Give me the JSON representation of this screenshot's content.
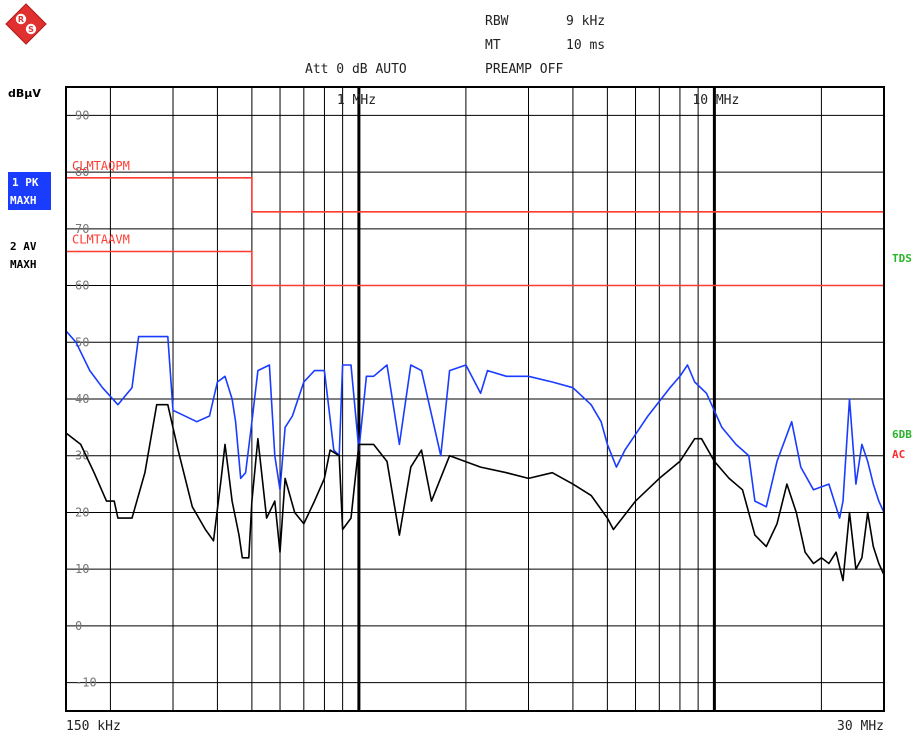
{
  "header": {
    "rbw_label": "RBW",
    "rbw_value": "9 kHz",
    "mt_label": "MT",
    "mt_value": "10 ms",
    "att_text": "Att 0 dB AUTO",
    "preamp_text": "PREAMP OFF"
  },
  "side_panel": {
    "unit_label": "dBµV",
    "trace1_line1": "1 PK",
    "trace1_line2": "MAXH",
    "trace2_line1": "2 AV",
    "trace2_line2": "MAXH",
    "tds_label": "TDS",
    "sixdb_label": "6DB",
    "ac_label": "AC"
  },
  "colors": {
    "background": "#ffffff",
    "grid": "#000000",
    "limit_lines": "#ff3b30",
    "peak_trace": "#1a3cff",
    "average_trace": "#000000",
    "trace1_badge": "#1a3cff",
    "status_green": "#2bb52b",
    "status_red": "#ff2a2a"
  },
  "logo_icon": "rohde-schwarz-diamond-logo",
  "chart_data": {
    "type": "line",
    "x_scale": "log",
    "x_unit": "Hz",
    "xlim": [
      150000,
      30000000
    ],
    "ylim": [
      -15,
      95
    ],
    "y_unit": "dBµV",
    "y_ticks": [
      90,
      80,
      70,
      60,
      50,
      40,
      30,
      20,
      10,
      0,
      -10
    ],
    "y_tick_labels": [
      "90",
      "80",
      "70",
      "60",
      "50",
      "40",
      "30",
      "20",
      "10",
      "0",
      "-10"
    ],
    "x_start_label": "150 kHz",
    "x_stop_label": "30 MHz",
    "x_decade_markers": [
      {
        "freq": 1000000,
        "label": "1 MHz"
      },
      {
        "freq": 10000000,
        "label": "10 MHz"
      }
    ],
    "grid": true,
    "limit_lines": [
      {
        "name": "CLMTAQPM",
        "points": [
          [
            150000,
            79
          ],
          [
            500000,
            79
          ],
          [
            500000,
            73
          ],
          [
            30000000,
            73
          ]
        ]
      },
      {
        "name": "CLMTAAVM",
        "points": [
          [
            150000,
            66
          ],
          [
            500000,
            66
          ],
          [
            500000,
            60
          ],
          [
            30000000,
            60
          ]
        ]
      }
    ],
    "series": [
      {
        "trace": "1 PK MAXH",
        "points": [
          [
            150000,
            52
          ],
          [
            160000,
            50
          ],
          [
            175000,
            45
          ],
          [
            190000,
            42
          ],
          [
            210000,
            39
          ],
          [
            230000,
            42
          ],
          [
            240000,
            51
          ],
          [
            290000,
            51
          ],
          [
            300000,
            38
          ],
          [
            350000,
            36
          ],
          [
            380000,
            37
          ],
          [
            400000,
            43
          ],
          [
            420000,
            44
          ],
          [
            440000,
            40
          ],
          [
            450000,
            36
          ],
          [
            465000,
            26
          ],
          [
            480000,
            27
          ],
          [
            500000,
            36
          ],
          [
            520000,
            45
          ],
          [
            560000,
            46
          ],
          [
            580000,
            30
          ],
          [
            600000,
            24
          ],
          [
            620000,
            35
          ],
          [
            650000,
            37
          ],
          [
            700000,
            43
          ],
          [
            750000,
            45
          ],
          [
            800000,
            45
          ],
          [
            850000,
            31
          ],
          [
            880000,
            30
          ],
          [
            900000,
            46
          ],
          [
            950000,
            46
          ],
          [
            1000000,
            31
          ],
          [
            1050000,
            44
          ],
          [
            1100000,
            44
          ],
          [
            1200000,
            46
          ],
          [
            1300000,
            32
          ],
          [
            1400000,
            46
          ],
          [
            1500000,
            45
          ],
          [
            1700000,
            30
          ],
          [
            1800000,
            45
          ],
          [
            2000000,
            46
          ],
          [
            2200000,
            41
          ],
          [
            2300000,
            45
          ],
          [
            2600000,
            44
          ],
          [
            3000000,
            44
          ],
          [
            3500000,
            43
          ],
          [
            4000000,
            42
          ],
          [
            4500000,
            39
          ],
          [
            4800000,
            36
          ],
          [
            5000000,
            32
          ],
          [
            5300000,
            28
          ],
          [
            5600000,
            31
          ],
          [
            6500000,
            37
          ],
          [
            7500000,
            42
          ],
          [
            8000000,
            44
          ],
          [
            8400000,
            46
          ],
          [
            8800000,
            43
          ],
          [
            9500000,
            41
          ],
          [
            10500000,
            35
          ],
          [
            11500000,
            32
          ],
          [
            12000000,
            31
          ],
          [
            12500000,
            30
          ],
          [
            13000000,
            22
          ],
          [
            14000000,
            21
          ],
          [
            15000000,
            29
          ],
          [
            16500000,
            36
          ],
          [
            17500000,
            28
          ],
          [
            19000000,
            24
          ],
          [
            21000000,
            25
          ],
          [
            22500000,
            19
          ],
          [
            23000000,
            22
          ],
          [
            24000000,
            40
          ],
          [
            25000000,
            25
          ],
          [
            26000000,
            32
          ],
          [
            27000000,
            29
          ],
          [
            28000000,
            25
          ],
          [
            29000000,
            22
          ],
          [
            30000000,
            20
          ]
        ]
      },
      {
        "trace": "2 AV MAXH",
        "points": [
          [
            150000,
            34
          ],
          [
            165000,
            32
          ],
          [
            180000,
            27
          ],
          [
            195000,
            22
          ],
          [
            205000,
            22
          ],
          [
            210000,
            19
          ],
          [
            230000,
            19
          ],
          [
            250000,
            27
          ],
          [
            270000,
            39
          ],
          [
            290000,
            39
          ],
          [
            310000,
            31
          ],
          [
            340000,
            21
          ],
          [
            370000,
            17
          ],
          [
            390000,
            15
          ],
          [
            410000,
            26
          ],
          [
            420000,
            32
          ],
          [
            430000,
            27
          ],
          [
            440000,
            22
          ],
          [
            460000,
            16
          ],
          [
            470000,
            12
          ],
          [
            490000,
            12
          ],
          [
            500000,
            22
          ],
          [
            520000,
            33
          ],
          [
            550000,
            19
          ],
          [
            580000,
            22
          ],
          [
            600000,
            13
          ],
          [
            620000,
            26
          ],
          [
            660000,
            20
          ],
          [
            700000,
            18
          ],
          [
            750000,
            22
          ],
          [
            800000,
            26
          ],
          [
            830000,
            31
          ],
          [
            880000,
            30
          ],
          [
            900000,
            17
          ],
          [
            950000,
            19
          ],
          [
            1000000,
            32
          ],
          [
            1100000,
            32
          ],
          [
            1200000,
            29
          ],
          [
            1300000,
            16
          ],
          [
            1400000,
            28
          ],
          [
            1500000,
            31
          ],
          [
            1600000,
            22
          ],
          [
            1800000,
            30
          ],
          [
            2200000,
            28
          ],
          [
            2600000,
            27
          ],
          [
            3000000,
            26
          ],
          [
            3500000,
            27
          ],
          [
            4000000,
            25
          ],
          [
            4500000,
            23
          ],
          [
            5000000,
            19
          ],
          [
            5200000,
            17
          ],
          [
            6000000,
            22
          ],
          [
            7000000,
            26
          ],
          [
            8000000,
            29
          ],
          [
            8800000,
            33
          ],
          [
            9200000,
            33
          ],
          [
            10000000,
            29
          ],
          [
            11000000,
            26
          ],
          [
            12000000,
            24
          ],
          [
            13000000,
            16
          ],
          [
            14000000,
            14
          ],
          [
            15000000,
            18
          ],
          [
            16000000,
            25
          ],
          [
            17000000,
            20
          ],
          [
            18000000,
            13
          ],
          [
            19000000,
            11
          ],
          [
            20000000,
            12
          ],
          [
            21000000,
            11
          ],
          [
            22000000,
            13
          ],
          [
            23000000,
            8
          ],
          [
            24000000,
            20
          ],
          [
            25000000,
            10
          ],
          [
            26000000,
            12
          ],
          [
            27000000,
            20
          ],
          [
            28000000,
            14
          ],
          [
            29000000,
            11
          ],
          [
            30000000,
            9
          ]
        ]
      }
    ]
  }
}
